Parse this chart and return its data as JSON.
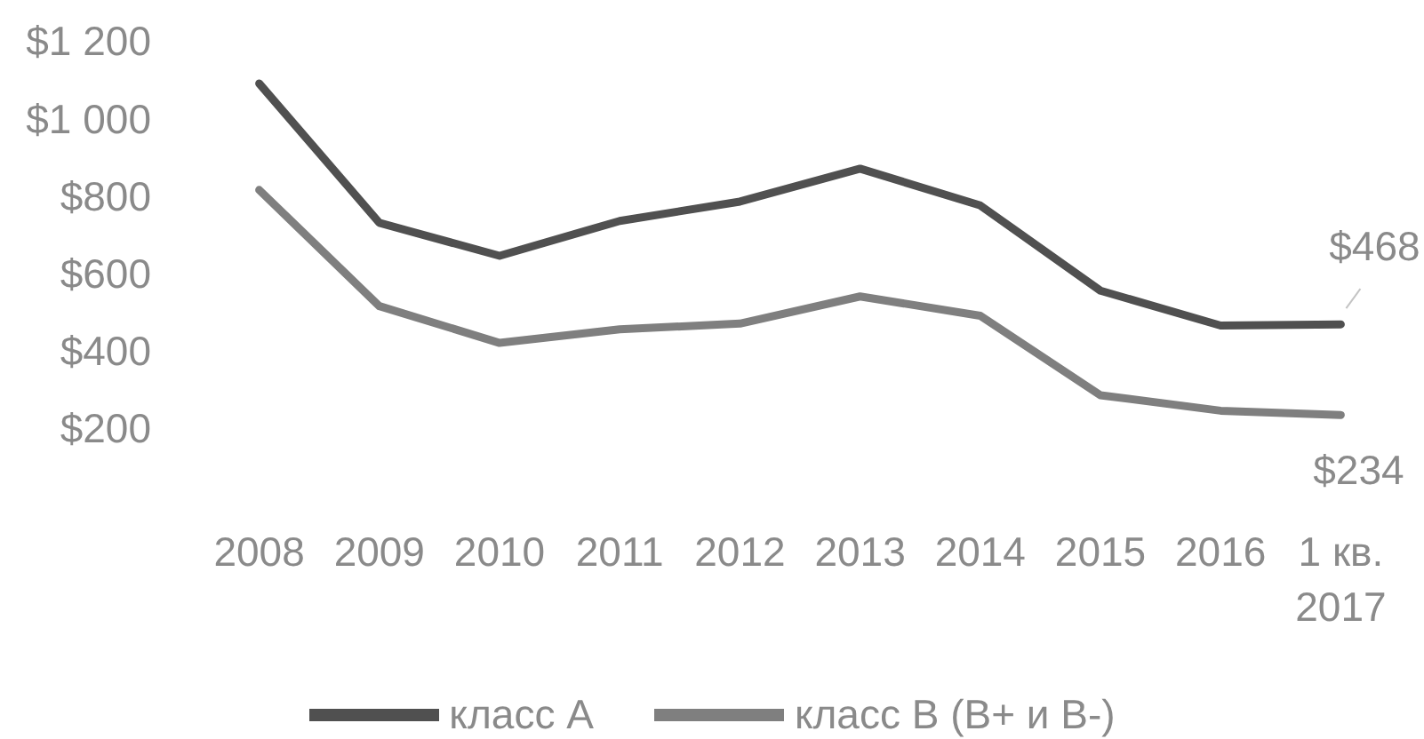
{
  "chart_data": {
    "type": "line",
    "categories": [
      "2008",
      "2009",
      "2010",
      "2011",
      "2012",
      "2013",
      "2014",
      "2015",
      "2016",
      "1 кв. 2017"
    ],
    "series": [
      {
        "name": "класс А",
        "color": "#505050",
        "values": [
          1090,
          730,
          645,
          735,
          785,
          870,
          775,
          555,
          465,
          468
        ],
        "value_labels": [
          null,
          null,
          null,
          null,
          null,
          null,
          null,
          null,
          null,
          "$468"
        ]
      },
      {
        "name": "класс В (В+ и В-)",
        "color": "#7f7f7f",
        "values": [
          815,
          515,
          420,
          455,
          470,
          540,
          490,
          285,
          245,
          234
        ],
        "value_labels": [
          null,
          null,
          null,
          null,
          null,
          null,
          null,
          null,
          null,
          "$234"
        ]
      }
    ],
    "ylim": [
      200,
      1200
    ],
    "yticks": [
      {
        "value": 200,
        "label": "$200"
      },
      {
        "value": 400,
        "label": "$400"
      },
      {
        "value": 600,
        "label": "$600"
      },
      {
        "value": 800,
        "label": "$800"
      },
      {
        "value": 1000,
        "label": "$1 000"
      },
      {
        "value": 1200,
        "label": "$1 200"
      }
    ],
    "legend": "bottom",
    "marker": "none",
    "line_style": "solid"
  }
}
